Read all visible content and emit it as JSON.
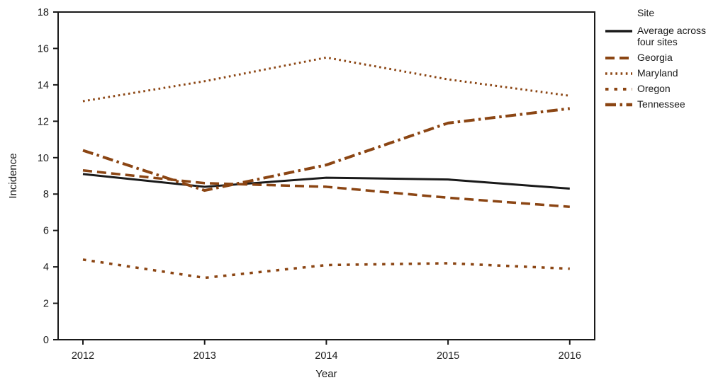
{
  "chart_data": {
    "type": "line",
    "title": "",
    "xlabel": "Year",
    "ylabel": "Incidence",
    "x": [
      2012,
      2013,
      2014,
      2015,
      2016
    ],
    "ylim": [
      0,
      18
    ],
    "yticks": [
      0,
      2,
      4,
      6,
      8,
      10,
      12,
      14,
      16,
      18
    ],
    "grid": false,
    "legend_title": "Site",
    "legend_position": "top-right",
    "axis_color": "#1a1a1a",
    "accent_color": "#8B4513",
    "series": [
      {
        "name": "Average across four sites",
        "style": "solid",
        "color": "#1a1a1a",
        "values": [
          9.1,
          8.4,
          8.9,
          8.8,
          8.3
        ]
      },
      {
        "name": "Georgia",
        "style": "long-dash",
        "color": "#8B4513",
        "values": [
          9.3,
          8.6,
          8.4,
          7.8,
          7.3
        ]
      },
      {
        "name": "Maryland",
        "style": "dotted",
        "color": "#8B4513",
        "values": [
          13.1,
          14.2,
          15.5,
          14.3,
          13.4
        ]
      },
      {
        "name": "Oregon",
        "style": "short-dash",
        "color": "#8B4513",
        "values": [
          4.4,
          3.4,
          4.1,
          4.2,
          3.9
        ]
      },
      {
        "name": "Tennessee",
        "style": "dash-dot",
        "color": "#8B4513",
        "values": [
          10.4,
          8.2,
          9.6,
          11.9,
          12.7
        ]
      }
    ]
  }
}
